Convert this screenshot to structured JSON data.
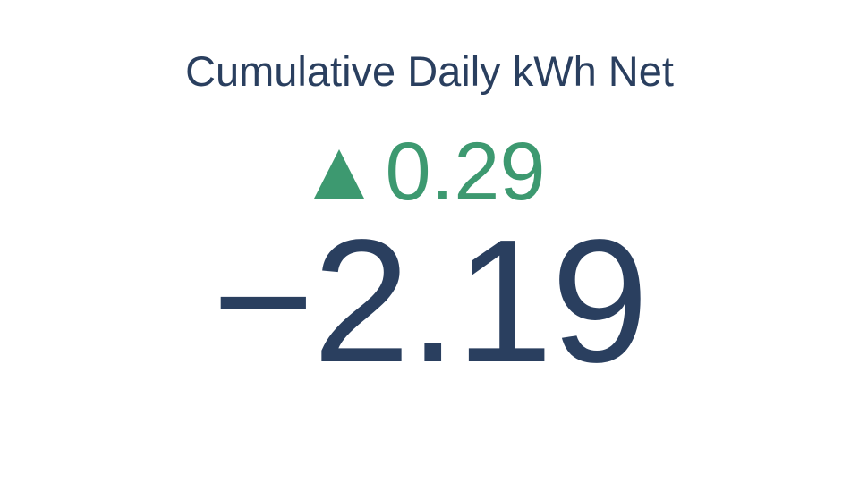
{
  "chart_data": {
    "type": "indicator",
    "title": "Cumulative Daily kWh Net",
    "value": -2.19,
    "value_text": "−2.19",
    "delta": {
      "value": 0.29,
      "value_text": "0.29",
      "direction": "increasing",
      "symbol": "▲",
      "color": "#3d9970"
    },
    "colors": {
      "text": "#2a3f5f",
      "background": "#ffffff"
    }
  }
}
